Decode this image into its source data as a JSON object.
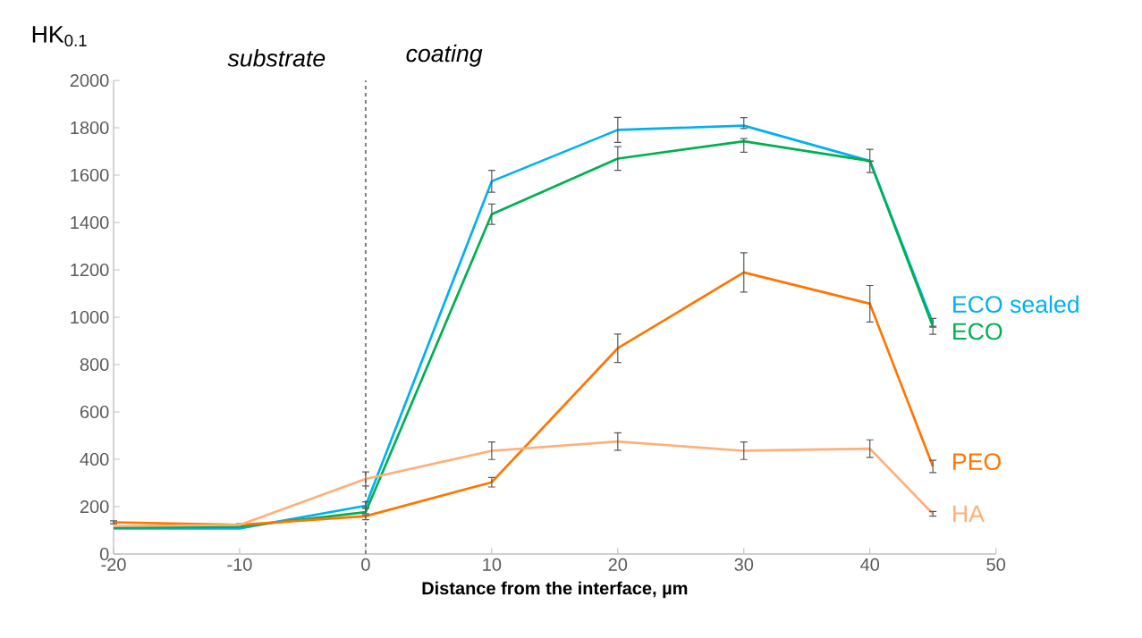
{
  "chart_data": {
    "type": "line",
    "xlabel": "Distance from the interface, µm",
    "ylabel": "HK$_{0.1}$",
    "annotations": [
      "substrate",
      "coating"
    ],
    "x": [
      -20,
      -10,
      0,
      10,
      20,
      30,
      40,
      45
    ],
    "xlim": [
      -20,
      50
    ],
    "xticks": [
      -20,
      -10,
      0,
      10,
      20,
      30,
      40,
      50
    ],
    "ylim": [
      0,
      2000
    ],
    "yticks": [
      0,
      200,
      400,
      600,
      800,
      1000,
      1200,
      1400,
      1600,
      1800,
      2000
    ],
    "grid": false,
    "legend": false,
    "marker": "none",
    "line_style": "solid",
    "ref_lines": [
      {
        "axis": "x",
        "value": 0,
        "color": "#7f7f7f",
        "line_style": "dashed"
      }
    ],
    "series": [
      {
        "name": "ECO sealed",
        "color": "#00b0f0",
        "values": [
          108,
          108,
          204,
          1574,
          1791,
          1809,
          1660,
          975
        ],
        "errors": [
          null,
          null,
          [
            198,
            220
          ],
          46,
          53,
          [
            1797,
            1843
          ],
          [
            1660,
            1709
          ],
          [
            962,
            995
          ]
        ]
      },
      {
        "name": "ECO",
        "color": "#00b050",
        "values": [
          112,
          115,
          177,
          1435,
          1670,
          1743,
          1660,
          960
        ],
        "errors": [
          null,
          null,
          [
            170,
            192
          ],
          43,
          50,
          [
            1697,
            1754
          ],
          [
            1611,
            1658
          ],
          [
            928,
            958
          ]
        ]
      },
      {
        "name": "PEO",
        "color": "#ff7500",
        "values": [
          134,
          123,
          160,
          303,
          869,
          1189,
          1057,
          370
        ],
        "errors": [
          [
            128,
            140
          ],
          [
            119,
            128
          ],
          [
            145,
            165
          ],
          20,
          60,
          83,
          77,
          26
        ]
      },
      {
        "name": "HA",
        "color": "#ffaf78",
        "values": [
          118,
          123,
          317,
          436,
          475,
          436,
          445,
          170
        ],
        "errors": [
          null,
          null,
          30,
          37,
          37,
          37,
          37,
          10
        ]
      }
    ]
  }
}
